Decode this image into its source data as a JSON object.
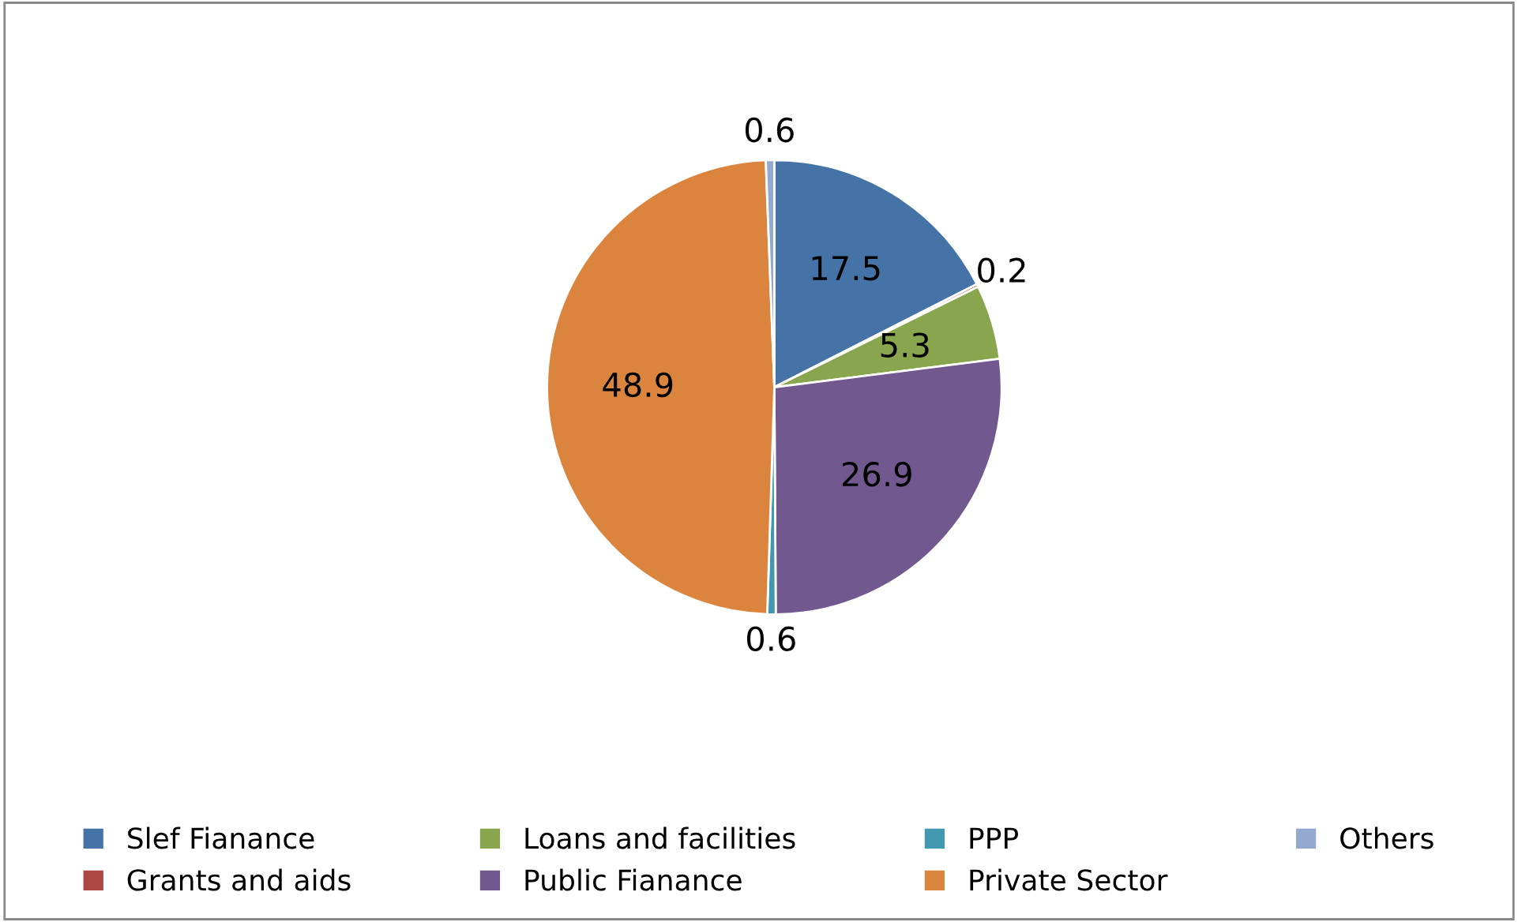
{
  "chart_data": {
    "type": "pie",
    "categories": [
      "Slef Fianance",
      "Grants and aids",
      "Loans and facilities",
      "Public Fianance",
      "PPP",
      "Private Sector",
      "Others"
    ],
    "values": [
      17.5,
      0.2,
      5.3,
      26.9,
      0.6,
      48.9,
      0.6
    ],
    "colors": [
      "#4572a7",
      "#aa4643",
      "#89a54e",
      "#71588f",
      "#4198af",
      "#db843d",
      "#93a9cf"
    ],
    "data_labels": true,
    "legend": "bottom"
  }
}
